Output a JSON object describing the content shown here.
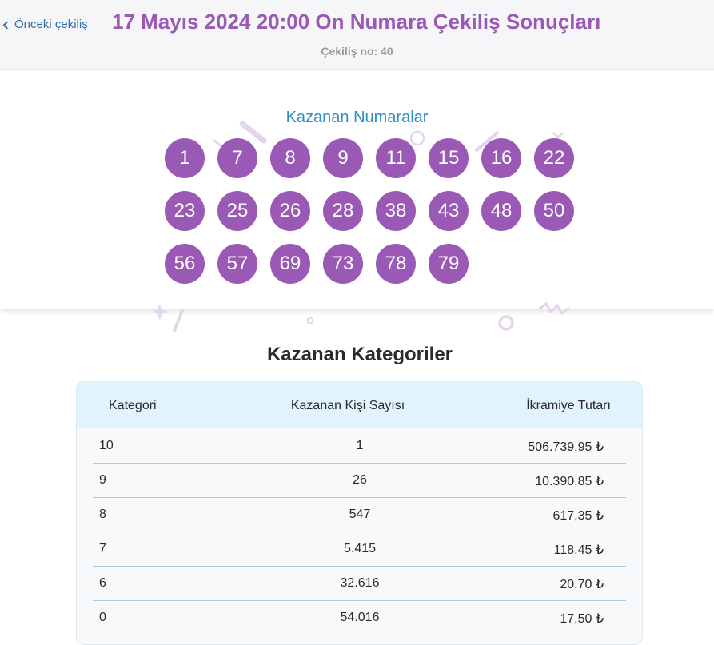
{
  "header": {
    "prev_label": "Önceki çekiliş",
    "title": "17 Mayıs 2024 20:00 On Numara Çekiliş Sonuçları",
    "subtitle": "Çekiliş no: 40"
  },
  "numbers": {
    "title": "Kazanan Numaralar",
    "balls": [
      "1",
      "7",
      "8",
      "9",
      "11",
      "15",
      "16",
      "22",
      "23",
      "25",
      "26",
      "28",
      "38",
      "43",
      "48",
      "50",
      "56",
      "57",
      "69",
      "73",
      "78",
      "79"
    ]
  },
  "categories": {
    "title": "Kazanan Kategoriler",
    "headers": [
      "Kategori",
      "Kazanan Kişi Sayısı",
      "İkramiye Tutarı"
    ],
    "rows": [
      {
        "category": "10",
        "winners": "1",
        "prize": "506.739,95 ₺"
      },
      {
        "category": "9",
        "winners": "26",
        "prize": "10.390,85 ₺"
      },
      {
        "category": "8",
        "winners": "547",
        "prize": "617,35 ₺"
      },
      {
        "category": "7",
        "winners": "5.415",
        "prize": "118,45 ₺"
      },
      {
        "category": "6",
        "winners": "32.616",
        "prize": "20,70 ₺"
      },
      {
        "category": "0",
        "winners": "54.016",
        "prize": "17,50 ₺"
      }
    ]
  },
  "colors": {
    "accent": "#9b59b6",
    "link": "#2f6fae",
    "numbers_title": "#2a8fc4",
    "table_header_bg": "#e1f3fc"
  }
}
